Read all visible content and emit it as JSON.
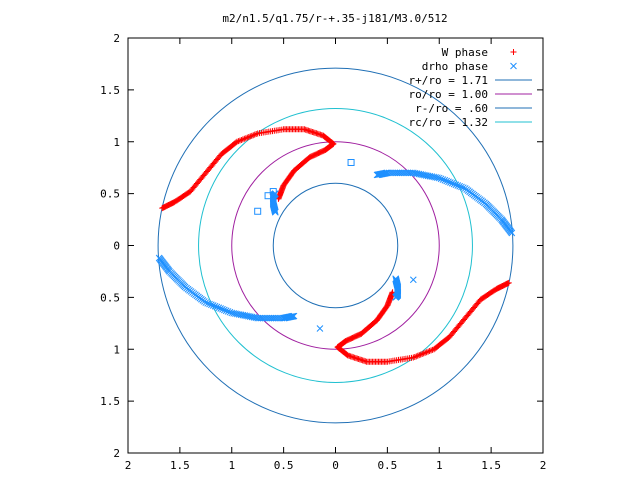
{
  "chart_data": {
    "type": "scatter",
    "title": "m2/n1.5/q1.75/r-+.35-j181/M3.0/512",
    "xlim": [
      -2,
      2
    ],
    "ylim": [
      -2,
      2
    ],
    "grid": false,
    "legend_position": "top-right",
    "x_tick_labels": [
      "2",
      "1.5",
      "1",
      "0.5",
      "0",
      "0.5",
      "1",
      "1.5",
      "2"
    ],
    "x_tick_values": [
      -2,
      -1.5,
      -1,
      -0.5,
      0,
      0.5,
      1,
      1.5,
      2
    ],
    "y_tick_labels": [
      "2",
      "1.5",
      "1",
      "0.5",
      "0",
      "0.5",
      "1",
      "1.5",
      "2"
    ],
    "y_tick_values": [
      2,
      1.5,
      1,
      0.5,
      0,
      -0.5,
      -1,
      -1.5,
      -2
    ],
    "circles": [
      {
        "name": "r+/ro = 1.71",
        "radius": 1.71,
        "color": "#1f6fb5"
      },
      {
        "name": "ro/ro = 1.00",
        "radius": 1.0,
        "color": "#a020a0"
      },
      {
        "name": "r-/ro = .60",
        "radius": 0.6,
        "color": "#1f6fb5"
      },
      {
        "name": "rc/ro = 1.32",
        "radius": 1.32,
        "color": "#20c0d0"
      }
    ],
    "series": [
      {
        "name": "W phase",
        "marker": "plus",
        "color": "#ff0000",
        "arms": [
          [
            [
              -1.67,
              0.36
            ],
            [
              -1.55,
              0.42
            ],
            [
              -1.4,
              0.52
            ],
            [
              -1.25,
              0.7
            ],
            [
              -1.1,
              0.88
            ],
            [
              -0.95,
              1.0
            ],
            [
              -0.75,
              1.08
            ],
            [
              -0.5,
              1.12
            ],
            [
              -0.3,
              1.12
            ],
            [
              -0.12,
              1.06
            ],
            [
              -0.02,
              0.98
            ],
            [
              -0.1,
              0.92
            ],
            [
              -0.25,
              0.85
            ],
            [
              -0.4,
              0.72
            ],
            [
              -0.5,
              0.58
            ],
            [
              -0.55,
              0.45
            ]
          ],
          [
            [
              1.67,
              -0.36
            ],
            [
              1.55,
              -0.42
            ],
            [
              1.4,
              -0.52
            ],
            [
              1.25,
              -0.7
            ],
            [
              1.1,
              -0.88
            ],
            [
              0.95,
              -1.0
            ],
            [
              0.75,
              -1.08
            ],
            [
              0.5,
              -1.12
            ],
            [
              0.3,
              -1.12
            ],
            [
              0.12,
              -1.06
            ],
            [
              0.02,
              -0.98
            ],
            [
              0.1,
              -0.92
            ],
            [
              0.25,
              -0.85
            ],
            [
              0.4,
              -0.72
            ],
            [
              0.5,
              -0.58
            ],
            [
              0.55,
              -0.45
            ]
          ]
        ]
      },
      {
        "name": "drho phase",
        "marker": "cross",
        "color": "#1e90ff",
        "arms": [
          [
            [
              -1.7,
              -0.12
            ],
            [
              -1.6,
              -0.25
            ],
            [
              -1.45,
              -0.4
            ],
            [
              -1.25,
              -0.55
            ],
            [
              -1.0,
              -0.65
            ],
            [
              -0.75,
              -0.7
            ],
            [
              -0.5,
              -0.7
            ],
            [
              -0.4,
              -0.68
            ]
          ],
          [
            [
              1.7,
              0.12
            ],
            [
              1.6,
              0.25
            ],
            [
              1.45,
              0.4
            ],
            [
              1.25,
              0.55
            ],
            [
              1.0,
              0.65
            ],
            [
              0.75,
              0.7
            ],
            [
              0.5,
              0.7
            ],
            [
              0.4,
              0.68
            ]
          ],
          [
            [
              -0.58,
              0.32
            ],
            [
              -0.6,
              0.4
            ],
            [
              -0.6,
              0.48
            ],
            [
              -0.58,
              0.5
            ]
          ],
          [
            [
              0.58,
              -0.32
            ],
            [
              0.6,
              -0.4
            ],
            [
              0.6,
              -0.48
            ],
            [
              0.58,
              -0.5
            ]
          ]
        ],
        "stray_points": [
          [
            -0.15,
            -0.8
          ],
          [
            0.75,
            -0.33
          ]
        ]
      }
    ],
    "square_points": {
      "color": "#1e90ff",
      "points": [
        [
          0.15,
          0.8
        ],
        [
          -0.75,
          0.33
        ],
        [
          -0.65,
          0.48
        ],
        [
          -0.6,
          0.52
        ]
      ]
    }
  }
}
